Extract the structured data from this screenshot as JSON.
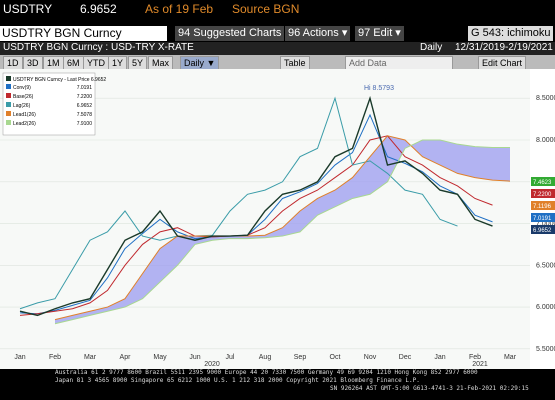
{
  "toolbar": {
    "ticker": "USDTRY",
    "price": "6.9652",
    "as_of": "As of 19 Feb",
    "source": "Source BGN"
  },
  "menu": {
    "security": "USDTRY BGN Curncy",
    "suggested": "94 Suggested Charts",
    "actions": "96 Actions ▾",
    "edit": "97 Edit ▾",
    "chart_id": "G 543: ichimoku"
  },
  "header": {
    "description": "USDTRY BGN Curncy : USD-TRY X-RATE",
    "period": "Daily",
    "range": "12/31/2019-2/19/2021"
  },
  "buttons": [
    "1D",
    "3D",
    "1M",
    "6M",
    "YTD",
    "1Y",
    "5Y",
    "Max"
  ],
  "frequency": "Daily ▼",
  "table": "Table",
  "add_data": "Add Data",
  "edit_chart": "Edit Chart",
  "footer": [
    "Australia 61 2 9777 8600 Brazil 5511 2395 9000 Europe 44 20 7330 7500 Germany 49 69 9204 1210 Hong Kong 852 2977 6000",
    "Japan 81 3 4565 8900      Singapore 65 6212 1000      U.S. 1 212 318 2000      Copyright 2021 Bloomberg Finance L.P.",
    "SN 926264 AST  GMT-5:00 G613-4741-3 21-Feb-2021 02:29:15"
  ],
  "chart_data": {
    "type": "line",
    "legend_title": "USDTRY BGN Curncy - Last Price 6.9652",
    "annotation": "Hi 8.5793",
    "categories": [
      "Jan",
      null,
      "Feb",
      null,
      "Mar",
      null,
      "Apr",
      null,
      "May",
      null,
      "Jun",
      null,
      "Jul",
      null,
      "Aug",
      null,
      "Sep",
      null,
      "Oct",
      null,
      "Nov",
      null,
      "Dec",
      null,
      "Jan",
      null,
      "Feb",
      null,
      "Mar"
    ],
    "year_labels": [
      "2020",
      "2021"
    ],
    "ylim": [
      5.45,
      8.85
    ],
    "yticks": [
      {
        "value": 5.5,
        "label": "5.5000"
      },
      {
        "value": 6,
        "label": "6.0000"
      },
      {
        "value": 6.5,
        "label": "6.5000"
      },
      {
        "value": 7,
        "label": "7.0000"
      },
      {
        "value": 7.5,
        "label": "7.5000"
      },
      {
        "value": 8,
        "label": "8.0000"
      },
      {
        "value": 8.5,
        "label": "8.5000"
      }
    ],
    "grid": true,
    "price": {
      "color": "#1a3a2a",
      "values": [
        5.95,
        5.9,
        5.98,
        6.05,
        6.1,
        6.45,
        6.8,
        6.9,
        7.15,
        6.85,
        6.8,
        6.85,
        6.85,
        6.86,
        7.15,
        7.35,
        7.4,
        7.5,
        7.8,
        7.9,
        8.5,
        7.7,
        7.75,
        7.6,
        7.4,
        7.35,
        7.05,
        6.97,
        null
      ]
    },
    "series": [
      {
        "name": "Conv(9)",
        "legend_value": "7.0191",
        "color": "#1f6fc4",
        "values": [
          5.93,
          5.92,
          5.96,
          6.02,
          6.08,
          6.35,
          6.7,
          6.88,
          7.05,
          6.9,
          6.82,
          6.84,
          6.85,
          6.86,
          7.05,
          7.3,
          7.38,
          7.48,
          7.7,
          7.85,
          8.3,
          7.8,
          7.72,
          7.62,
          7.45,
          7.35,
          7.1,
          7.02,
          null
        ]
      },
      {
        "name": "Base(26)",
        "legend_value": "7.2200",
        "color": "#c0292e",
        "values": [
          5.9,
          5.92,
          5.95,
          5.98,
          6.05,
          6.2,
          6.5,
          6.75,
          6.9,
          6.95,
          6.85,
          6.84,
          6.85,
          6.86,
          6.95,
          7.15,
          7.3,
          7.4,
          7.55,
          7.7,
          8.0,
          8.05,
          7.8,
          7.7,
          7.55,
          7.45,
          7.3,
          7.22,
          null
        ]
      },
      {
        "name": "Lag(26)",
        "legend_value": "6.9652",
        "color": "#3a9ca8",
        "values": [
          5.98,
          6.05,
          6.1,
          6.45,
          6.8,
          6.9,
          7.15,
          6.85,
          6.8,
          6.85,
          6.85,
          6.86,
          7.15,
          7.35,
          7.4,
          7.5,
          7.8,
          7.9,
          8.5,
          7.7,
          7.75,
          7.6,
          7.4,
          7.35,
          7.05,
          6.97,
          null,
          null,
          null
        ]
      },
      {
        "name": "Lead1(26)",
        "legend_value": "7.5078",
        "color": "#e0802a",
        "values": [
          null,
          null,
          5.85,
          5.9,
          5.95,
          6.0,
          6.1,
          6.4,
          6.7,
          6.85,
          6.85,
          6.85,
          6.85,
          6.85,
          6.86,
          6.95,
          7.15,
          7.3,
          7.4,
          7.55,
          7.8,
          8.05,
          8.0,
          7.8,
          7.7,
          7.6,
          7.55,
          7.52,
          7.5078
        ]
      },
      {
        "name": "Lead2(26)",
        "legend_value": "7.9100",
        "color": "#a8d890",
        "values": [
          null,
          null,
          5.8,
          5.85,
          5.9,
          5.95,
          6.0,
          6.1,
          6.3,
          6.5,
          6.75,
          6.8,
          6.82,
          6.82,
          6.83,
          6.85,
          6.9,
          7.1,
          7.2,
          7.3,
          7.35,
          7.5,
          7.9,
          8.0,
          8.0,
          7.95,
          7.92,
          7.91,
          7.91
        ]
      }
    ],
    "cloud_color": "#9b9bf0",
    "last_labels": [
      {
        "label": "7.4623",
        "color": "#33aa33"
      },
      {
        "label": "7.2200",
        "color": "#c0292e"
      },
      {
        "label": "7.1196",
        "color": "#e0802a"
      },
      {
        "label": "7.0191",
        "color": "#1f6fc4"
      },
      {
        "label": "6.9652",
        "color": "#1a3a6a"
      }
    ]
  }
}
